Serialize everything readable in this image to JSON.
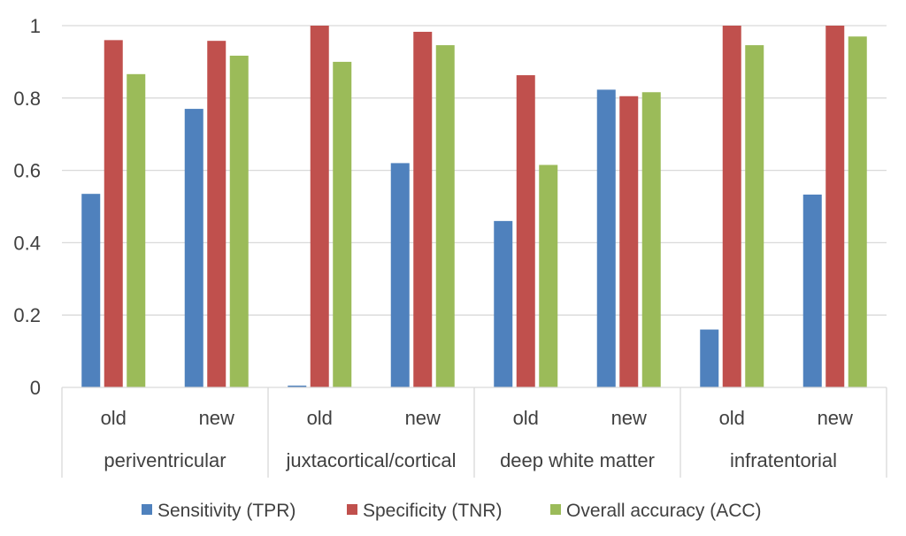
{
  "chart_data": {
    "type": "bar",
    "title": "",
    "xlabel": "",
    "ylabel": "",
    "ylim": [
      0,
      1
    ],
    "yticks": [
      "0",
      "0.2",
      "0.4",
      "0.6",
      "0.8",
      "1"
    ],
    "grid": true,
    "legend_position": "bottom",
    "groups": [
      "periventricular",
      "juxtacortical/cortical",
      "deep white matter",
      "infratentorial"
    ],
    "categories": [
      "old",
      "new",
      "old",
      "new",
      "old",
      "new",
      "old",
      "new"
    ],
    "series": [
      {
        "name": "Sensitivity (TPR)",
        "color": "#4f81bd",
        "values": [
          0.535,
          0.77,
          0.005,
          0.62,
          0.46,
          0.823,
          0.16,
          0.533
        ]
      },
      {
        "name": "Specificity (TNR)",
        "color": "#c0504d",
        "values": [
          0.96,
          0.958,
          1.0,
          0.983,
          0.863,
          0.805,
          1.0,
          1.0
        ]
      },
      {
        "name": "Overall accuracy (ACC)",
        "color": "#9bbb59",
        "values": [
          0.866,
          0.917,
          0.9,
          0.946,
          0.615,
          0.816,
          0.946,
          0.97
        ]
      }
    ]
  }
}
